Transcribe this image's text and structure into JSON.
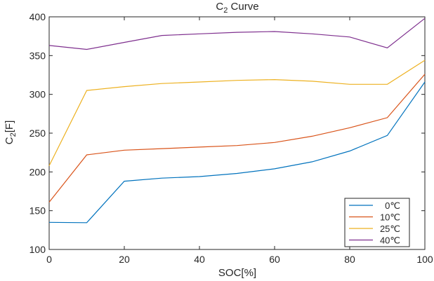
{
  "chart_data": {
    "type": "line",
    "title": "C",
    "title_subscript": "2",
    "title_suffix": " Curve",
    "xlabel": "SOC[%]",
    "ylabel": "C",
    "ylabel_subscript": "2",
    "ylabel_suffix": "[F]",
    "xlim": [
      0,
      100
    ],
    "ylim": [
      100,
      400
    ],
    "x_ticks": [
      0,
      20,
      40,
      60,
      80,
      100
    ],
    "y_ticks": [
      100,
      150,
      200,
      250,
      300,
      350,
      400
    ],
    "grid": false,
    "legend_position": "bottom-right",
    "x": [
      0,
      10,
      20,
      30,
      40,
      50,
      60,
      70,
      80,
      90,
      100
    ],
    "series": [
      {
        "name": "0℃",
        "color": "#0072BD",
        "values": [
          135,
          134.5,
          188,
          192,
          194,
          198,
          204,
          213,
          227,
          247,
          316
        ]
      },
      {
        "name": "10℃",
        "color": "#D95319",
        "values": [
          161,
          222,
          228,
          230,
          232,
          234,
          238,
          246,
          257,
          270,
          326
        ]
      },
      {
        "name": "25℃",
        "color": "#EDB120",
        "values": [
          208,
          305,
          310,
          314,
          316,
          318,
          319,
          317,
          313,
          313,
          344
        ]
      },
      {
        "name": "40℃",
        "color": "#7E2F8E",
        "values": [
          363,
          358,
          367,
          376,
          378,
          380,
          381,
          378,
          374,
          360,
          398
        ]
      }
    ]
  }
}
